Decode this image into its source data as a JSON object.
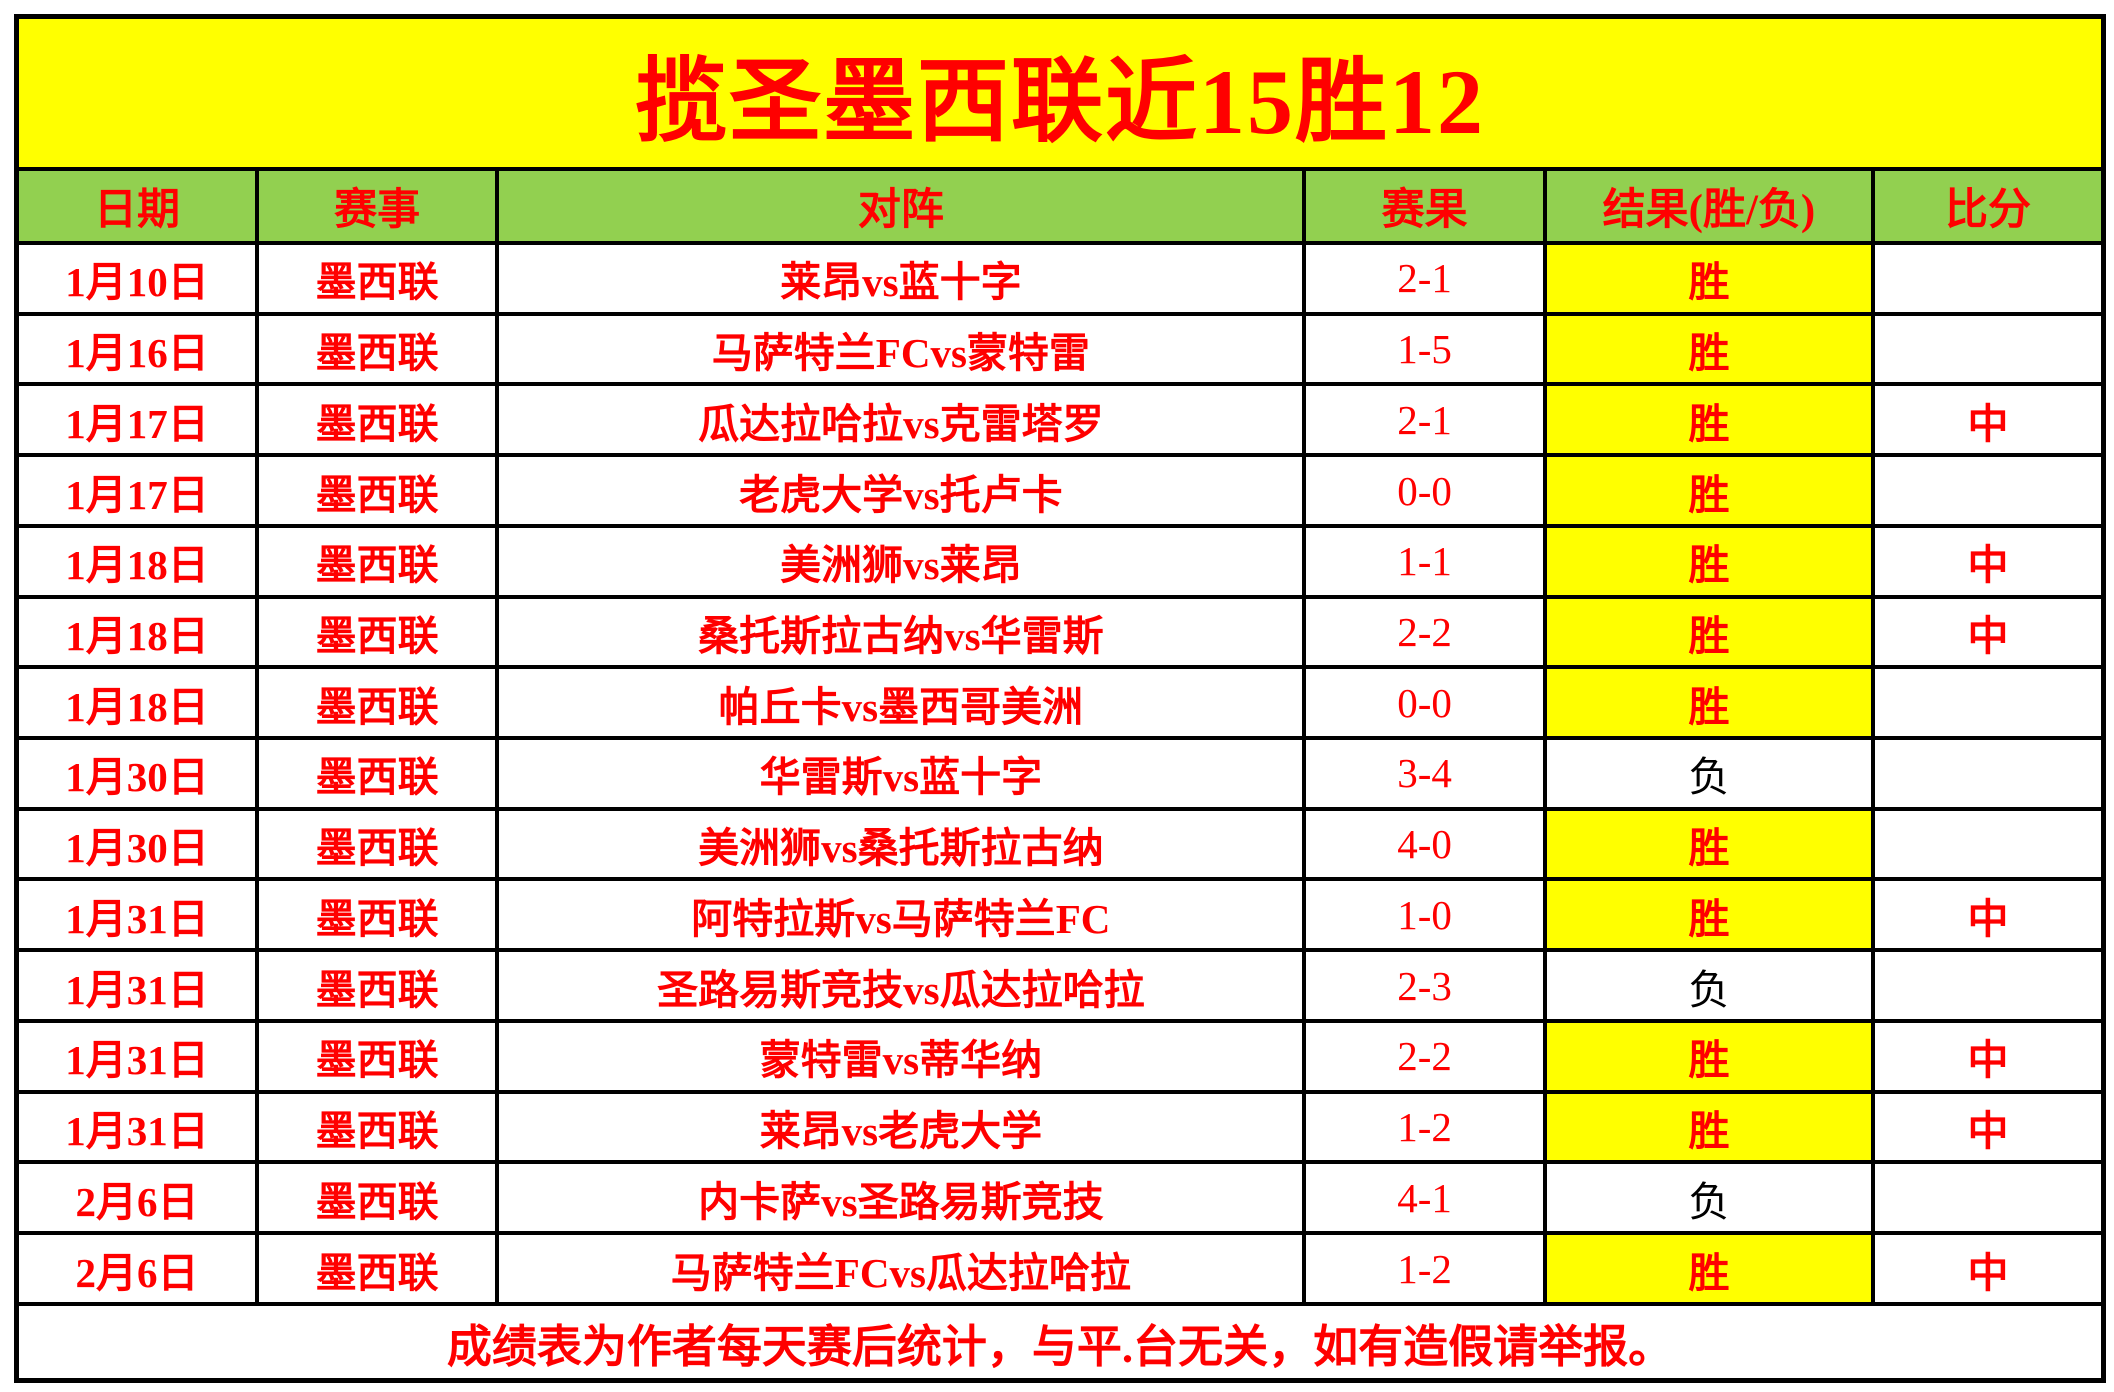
{
  "title": "揽圣墨西联近15胜12",
  "columns": [
    "日期",
    "赛事",
    "对阵",
    "赛果",
    "结果(胜/负)",
    "比分"
  ],
  "rows": [
    {
      "date": "1月10日",
      "league": "墨西联",
      "match": "莱昂vs蓝十字",
      "score": "2-1",
      "result": "胜",
      "hit": ""
    },
    {
      "date": "1月16日",
      "league": "墨西联",
      "match": "马萨特兰FCvs蒙特雷",
      "score": "1-5",
      "result": "胜",
      "hit": ""
    },
    {
      "date": "1月17日",
      "league": "墨西联",
      "match": "瓜达拉哈拉vs克雷塔罗",
      "score": "2-1",
      "result": "胜",
      "hit": "中"
    },
    {
      "date": "1月17日",
      "league": "墨西联",
      "match": "老虎大学vs托卢卡",
      "score": "0-0",
      "result": "胜",
      "hit": ""
    },
    {
      "date": "1月18日",
      "league": "墨西联",
      "match": "美洲狮vs莱昂",
      "score": "1-1",
      "result": "胜",
      "hit": "中"
    },
    {
      "date": "1月18日",
      "league": "墨西联",
      "match": "桑托斯拉古纳vs华雷斯",
      "score": "2-2",
      "result": "胜",
      "hit": "中"
    },
    {
      "date": "1月18日",
      "league": "墨西联",
      "match": "帕丘卡vs墨西哥美洲",
      "score": "0-0",
      "result": "胜",
      "hit": ""
    },
    {
      "date": "1月30日",
      "league": "墨西联",
      "match": "华雷斯vs蓝十字",
      "score": "3-4",
      "result": "负",
      "hit": ""
    },
    {
      "date": "1月30日",
      "league": "墨西联",
      "match": "美洲狮vs桑托斯拉古纳",
      "score": "4-0",
      "result": "胜",
      "hit": ""
    },
    {
      "date": "1月31日",
      "league": "墨西联",
      "match": "阿特拉斯vs马萨特兰FC",
      "score": "1-0",
      "result": "胜",
      "hit": "中"
    },
    {
      "date": "1月31日",
      "league": "墨西联",
      "match": "圣路易斯竞技vs瓜达拉哈拉",
      "score": "2-3",
      "result": "负",
      "hit": ""
    },
    {
      "date": "1月31日",
      "league": "墨西联",
      "match": "蒙特雷vs蒂华纳",
      "score": "2-2",
      "result": "胜",
      "hit": "中"
    },
    {
      "date": "1月31日",
      "league": "墨西联",
      "match": "莱昂vs老虎大学",
      "score": "1-2",
      "result": "胜",
      "hit": "中"
    },
    {
      "date": "2月6日",
      "league": "墨西联",
      "match": "内卡萨vs圣路易斯竞技",
      "score": "4-1",
      "result": "负",
      "hit": ""
    },
    {
      "date": "2月6日",
      "league": "墨西联",
      "match": "马萨特兰FCvs瓜达拉哈拉",
      "score": "1-2",
      "result": "胜",
      "hit": "中"
    }
  ],
  "footer": "成绩表为作者每天赛后统计，与平.台无关，如有造假请举报。",
  "result_labels": {
    "win": "胜",
    "lose": "负",
    "hit": "中"
  },
  "colors": {
    "title_bg": "#FFFF00",
    "header_bg": "#92D050",
    "win_bg": "#FFFF00",
    "text_red": "#FF0000",
    "lose_text": "#000000",
    "border": "#000000"
  }
}
